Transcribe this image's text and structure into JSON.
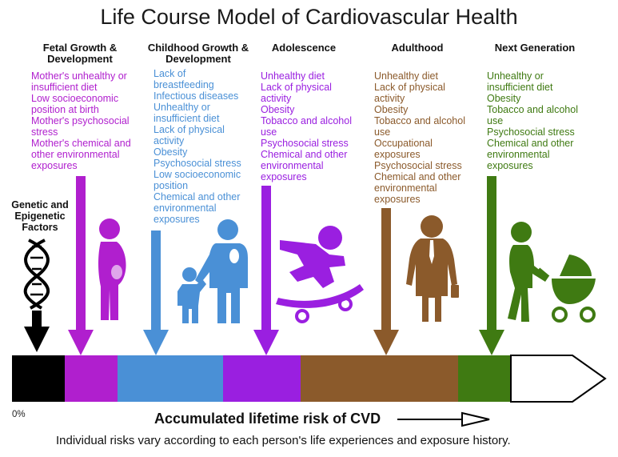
{
  "title": "Life Course Model of Cardiovascular Health",
  "genetic": {
    "title_lines": [
      "Genetic and",
      "Epigenetic",
      "Factors"
    ]
  },
  "stages": [
    {
      "title_lines": [
        "Fetal Growth &",
        "Development"
      ],
      "color": "#b01fce",
      "risks": [
        "Mother's unhealthy or",
        "insufficient diet",
        "Low socioeconomic",
        "position at birth",
        "Mother's psychosocial",
        "stress",
        "Mother's chemical and",
        "other environmental",
        "exposures"
      ]
    },
    {
      "title_lines": [
        "Childhood Growth &",
        "Development"
      ],
      "color": "#4a90d6",
      "risks": [
        "Lack of",
        "breastfeeding",
        "Infectious diseases",
        "Unhealthy or",
        "insufficient diet",
        "Lack of physical",
        "activity",
        "Obesity",
        "Psychosocial stress",
        "Low socioeconomic",
        "position",
        "Chemical and other",
        "environmental",
        "exposures"
      ]
    },
    {
      "title_lines": [
        "Adolescence"
      ],
      "color": "#9a1fe0",
      "risks": [
        "Unhealthy diet",
        "Lack of physical",
        "activity",
        "Obesity",
        "Tobacco and alcohol",
        "use",
        "Psychosocial stress",
        "Chemical and other",
        "environmental",
        "exposures"
      ]
    },
    {
      "title_lines": [
        "Adulthood"
      ],
      "color": "#8b5a2b",
      "risks": [
        "Unhealthy diet",
        "Lack of physical",
        "activity",
        "Obesity",
        "Tobacco and alcohol",
        "use",
        "Occupational",
        "exposures",
        "Psychosocial stress",
        "Chemical and other",
        "environmental",
        "exposures"
      ]
    },
    {
      "title_lines": [
        "Next Generation"
      ],
      "color": "#3f7a12",
      "risks": [
        "Unhealthy or",
        "insufficient diet",
        "Obesity",
        "Tobacco and alcohol",
        "use",
        "Psychosocial stress",
        "Chemical and other",
        "environmental",
        "exposures"
      ]
    }
  ],
  "bar": {
    "segment_colors": [
      "#000000",
      "#b01fce",
      "#4a90d6",
      "#9a1fe0",
      "#8b5a2b",
      "#3f7a12",
      "#ffffff"
    ],
    "start_label": "0%"
  },
  "axis_label": "Accumulated lifetime risk of CVD",
  "note": "Individual risks vary according to each person's life experiences and exposure history.",
  "icons": [
    "dna-helix-icon",
    "pregnant-woman-icon",
    "parent-and-child-icon",
    "skateboarder-icon",
    "businesswoman-icon",
    "parent-with-stroller-icon"
  ]
}
